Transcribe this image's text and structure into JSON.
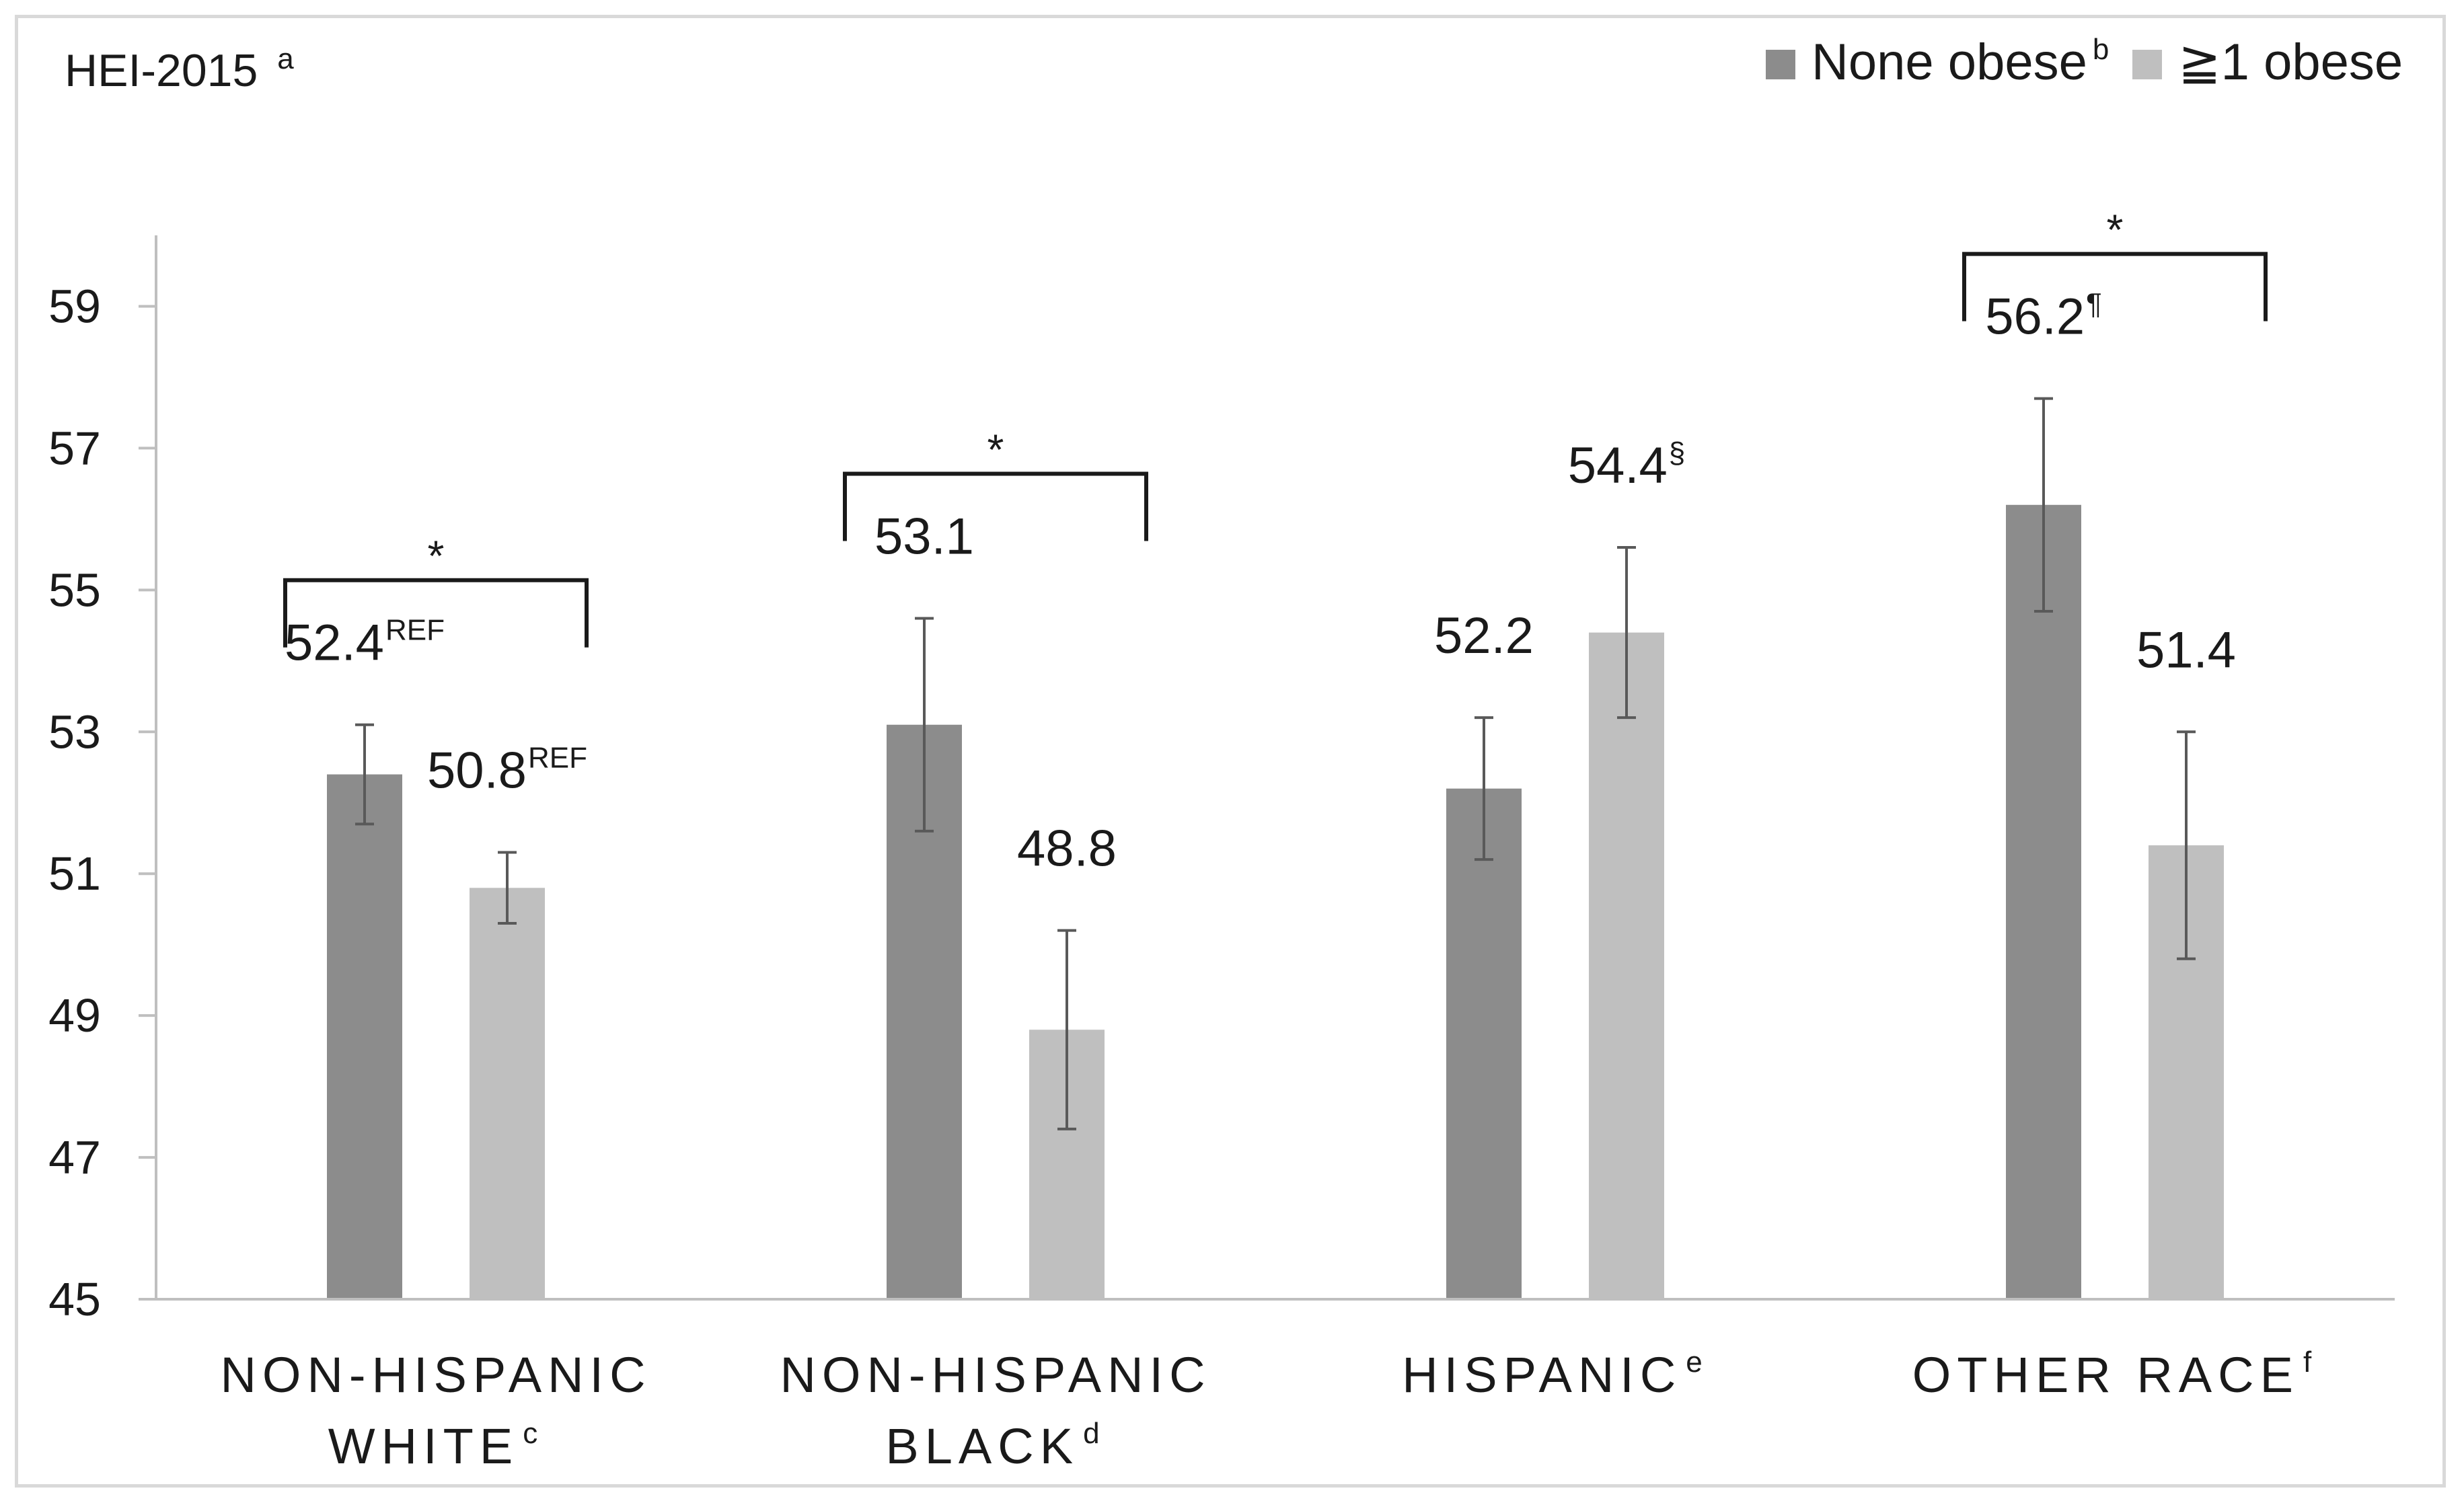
{
  "chart_data": {
    "type": "bar",
    "title": "HEI-2015",
    "title_sup": "a",
    "categories": [
      {
        "lines": [
          "NON-HISPANIC",
          "WHITE"
        ],
        "sup": "c"
      },
      {
        "lines": [
          "NON-HISPANIC",
          "BLACK"
        ],
        "sup": "d"
      },
      {
        "lines": [
          "HISPANIC"
        ],
        "sup": "e"
      },
      {
        "lines": [
          "OTHER RACE"
        ],
        "sup": "f"
      }
    ],
    "series": [
      {
        "name": "None obese",
        "name_sup": "b",
        "color": "#8c8c8c",
        "values": [
          52.4,
          53.1,
          52.2,
          56.2
        ],
        "error_low": [
          51.7,
          51.6,
          51.2,
          54.7
        ],
        "error_high": [
          53.1,
          54.6,
          53.2,
          57.7
        ],
        "label_text": [
          "52.4",
          "53.1",
          "52.2",
          "56.2"
        ],
        "label_sup": [
          "REF",
          "",
          "",
          "¶"
        ]
      },
      {
        "name": "≧1 obese",
        "name_sup": "",
        "color": "#bfbfbf",
        "values": [
          50.8,
          48.8,
          54.4,
          51.4
        ],
        "error_low": [
          50.3,
          47.4,
          53.2,
          49.8
        ],
        "error_high": [
          51.3,
          50.2,
          55.6,
          53.0
        ],
        "label_text": [
          "50.8",
          "48.8",
          "54.4",
          "51.4"
        ],
        "label_sup": [
          "REF",
          "",
          "§",
          ""
        ]
      }
    ],
    "significance": [
      {
        "category_index": 0,
        "mark": "*"
      },
      {
        "category_index": 1,
        "mark": "*"
      },
      {
        "category_index": 3,
        "mark": "*"
      }
    ],
    "ylim": [
      45,
      60
    ],
    "yticks": [
      45,
      47,
      49,
      51,
      53,
      55,
      57,
      59
    ],
    "legend_position": "top-right",
    "grid": false
  }
}
